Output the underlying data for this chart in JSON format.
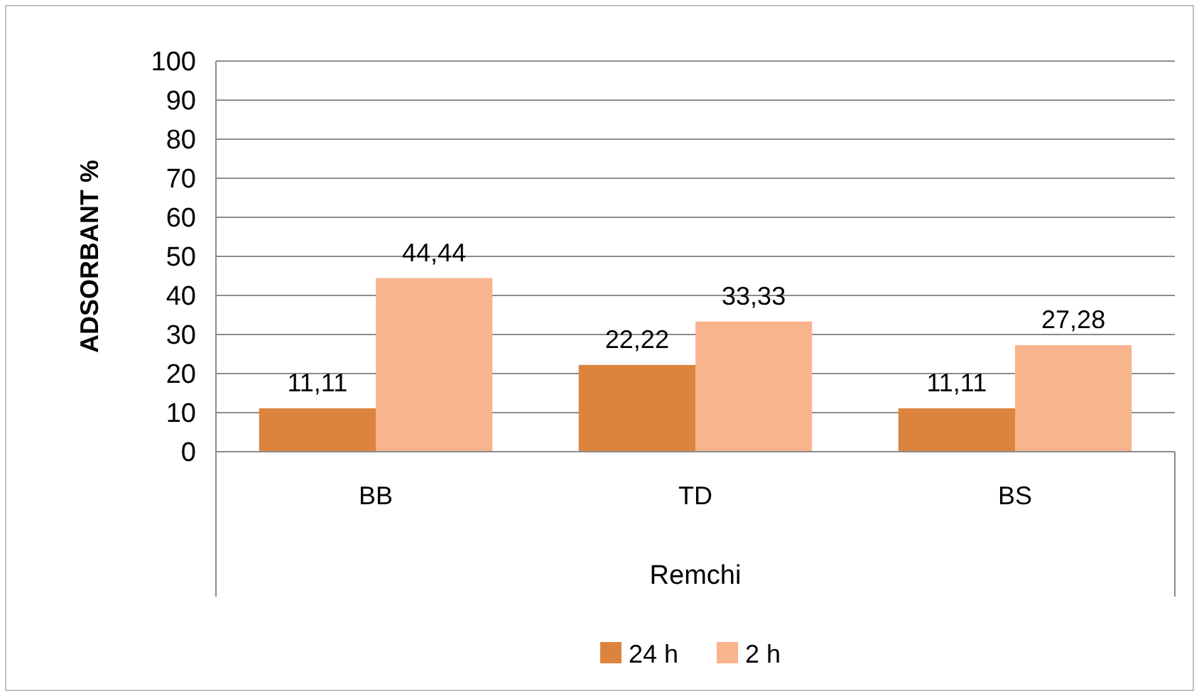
{
  "chart_data": {
    "type": "bar",
    "categories": [
      "BB",
      "TD",
      "BS"
    ],
    "xlabel": "Remchi",
    "ylabel": "ADSORBANT %",
    "series": [
      {
        "name": "24 h",
        "color": "#dc843e",
        "values": [
          11.11,
          22.22,
          11.11
        ],
        "value_labels": [
          "11,11",
          "22,22",
          "11,11"
        ]
      },
      {
        "name": "2 h",
        "color": "#f8b48c",
        "values": [
          44.44,
          33.33,
          27.28
        ],
        "value_labels": [
          "44,44",
          "33,33",
          "27,28"
        ]
      }
    ],
    "ylim": [
      0,
      100
    ],
    "yticks": [
      0,
      10,
      20,
      30,
      40,
      50,
      60,
      70,
      80,
      90,
      100
    ],
    "grid": "y",
    "legend": "bottom"
  }
}
